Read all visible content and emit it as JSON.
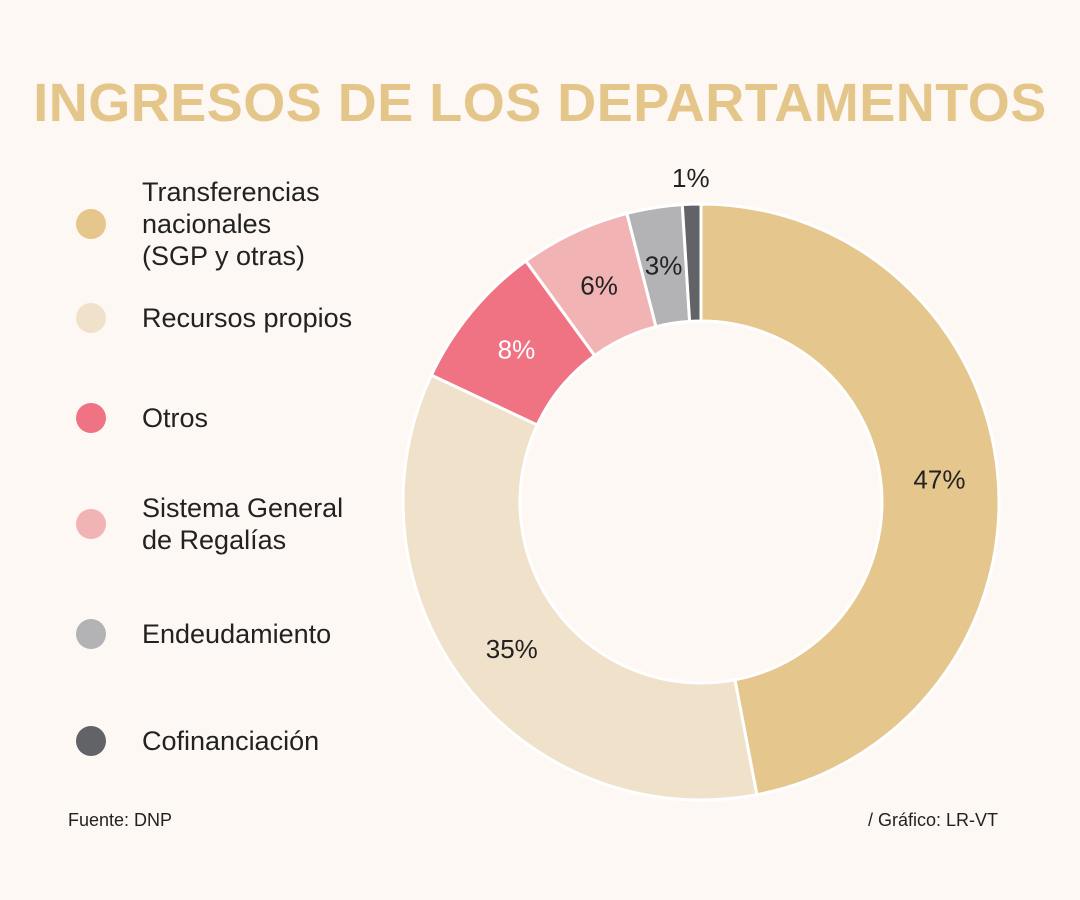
{
  "title": "INGRESOS DE LOS DEPARTAMENTOS",
  "footer": {
    "source": "Fuente: DNP",
    "credit": "/ Gráfico: LR-VT"
  },
  "chart_data": {
    "type": "pie",
    "donut": true,
    "title": "INGRESOS DE LOS DEPARTAMENTOS",
    "slices": [
      {
        "name": "Transferencias nacionales\n(SGP y otras)",
        "value": 47,
        "label": "47%",
        "color": "#e5c68c",
        "label_color": "#222222"
      },
      {
        "name": "Recursos propios",
        "value": 35,
        "label": "35%",
        "color": "#f0e1ca",
        "label_color": "#222222"
      },
      {
        "name": "Otros",
        "value": 8,
        "label": "8%",
        "color": "#f07384",
        "label_color": "#ffffff"
      },
      {
        "name": "Sistema General\nde Regalías",
        "value": 6,
        "label": "6%",
        "color": "#f2b3b5",
        "label_color": "#222222"
      },
      {
        "name": "Endeudamiento",
        "value": 3,
        "label": "3%",
        "color": "#b3b3b6",
        "label_color": "#222222"
      },
      {
        "name": "Cofinanciación",
        "value": 1,
        "label": "1%",
        "color": "#616366",
        "label_color": "#222222"
      }
    ]
  }
}
